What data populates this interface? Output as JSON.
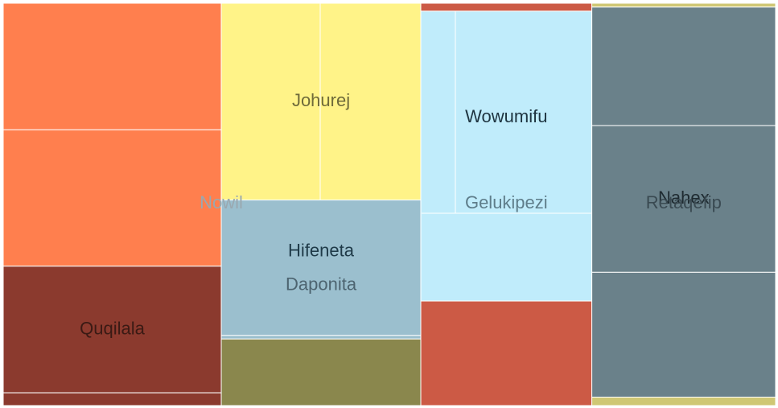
{
  "chart_data": {
    "type": "treemap",
    "groups": [
      {
        "name": "Nowil",
        "color": "#ff7f4e",
        "label_color": "#9aa8b0",
        "children": [
          {
            "name": "",
            "color": "#ff7f4e",
            "value": 42600
          },
          {
            "name": "",
            "color": "#ff7f4e",
            "value": 45900
          },
          {
            "name": "Quqilala",
            "color": "#8b3a2e",
            "value": 42600
          },
          {
            "name": "",
            "color": "#8b3a2e",
            "value": 4300
          }
        ]
      },
      {
        "name": "",
        "color": "#fff388",
        "children": [
          {
            "name": "Johurej",
            "color": "#fff388",
            "value": 60600
          },
          {
            "name": "Hifeneta",
            "subtitle": "Daponita",
            "color": "#9bbfce",
            "value": 41700
          },
          {
            "name": "",
            "color": "#9bbfce",
            "value": 1100
          },
          {
            "name": "",
            "color": "#8a874d",
            "value": 20500
          }
        ]
      },
      {
        "name": "Gelukipezi",
        "color": "#c0ecfb",
        "label_color": "#5e7d8a",
        "children": [
          {
            "name": "",
            "color": "#cc5a45",
            "value": 2100
          },
          {
            "name": "Wowumifu",
            "color": "#c0ecfb",
            "value": 76500
          },
          {
            "name": "",
            "color": "#cc5a45",
            "value": 27600
          }
        ]
      },
      {
        "name": "Retaqefip",
        "color": "#6a818a",
        "label_color": "#3a4a52",
        "children": [
          {
            "name": "",
            "color": "#cfc774",
            "value": 1100
          },
          {
            "name": "",
            "color": "#6a818a",
            "value": 33600
          },
          {
            "name": "Nahex",
            "color": "#6a818a",
            "value": 41600
          },
          {
            "name": "",
            "color": "#6a818a",
            "value": 35400
          },
          {
            "name": "",
            "color": "#cfc774",
            "value": 2400
          }
        ]
      }
    ]
  }
}
